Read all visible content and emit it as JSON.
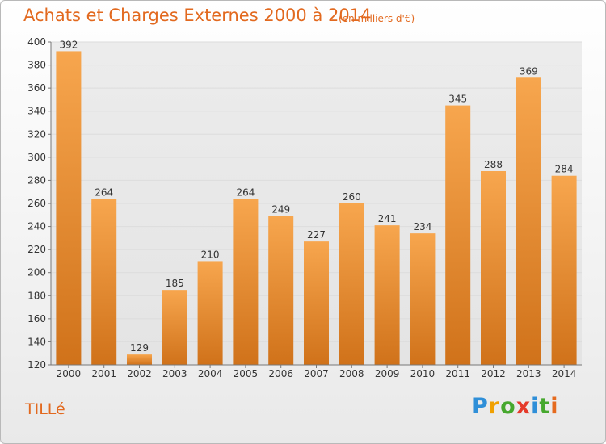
{
  "header": {
    "title": "Achats et Charges Externes 2000 à 2014",
    "subtitle": "(en milliers d'€)"
  },
  "footer": {
    "commune": "TILLé",
    "brand": {
      "letters": [
        "P",
        "r",
        "o",
        "x",
        "i",
        "t",
        "i"
      ],
      "colors": [
        "#2f8fd8",
        "#f0a000",
        "#46a82e",
        "#e53a2a",
        "#2f8fd8",
        "#46a82e",
        "#e56a1e"
      ]
    }
  },
  "colors": {
    "bar_top": "#f7a64e",
    "bar_bottom": "#d0721a",
    "title": "#e2691f",
    "grid": "#dcdcdc",
    "axis_text": "#333333"
  },
  "chart_data": {
    "type": "bar",
    "categories": [
      "2000",
      "2001",
      "2002",
      "2003",
      "2004",
      "2005",
      "2006",
      "2007",
      "2008",
      "2009",
      "2010",
      "2011",
      "2012",
      "2013",
      "2014"
    ],
    "values": [
      392,
      264,
      129,
      185,
      210,
      264,
      249,
      227,
      260,
      241,
      234,
      345,
      288,
      369,
      284
    ],
    "yticks": [
      120,
      140,
      160,
      180,
      200,
      220,
      240,
      260,
      280,
      300,
      320,
      340,
      360,
      380,
      400
    ],
    "ylim": [
      120,
      400
    ],
    "grid": true,
    "legend": "none"
  }
}
